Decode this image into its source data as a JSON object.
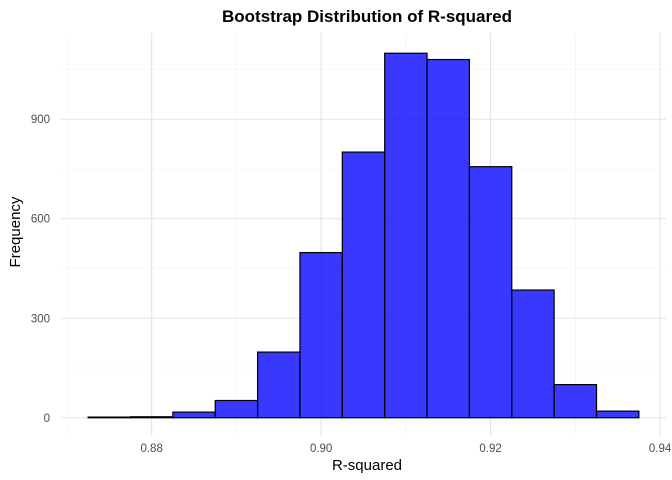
{
  "chart_data": {
    "type": "bar",
    "title": "Bootstrap Distribution of R-squared",
    "xlabel": "R-squared",
    "ylabel": "Frequency",
    "bin_width": 0.005,
    "bins": [
      {
        "x0": 0.8725,
        "x1": 0.8775,
        "count": 2
      },
      {
        "x0": 0.8775,
        "x1": 0.8825,
        "count": 3
      },
      {
        "x0": 0.8825,
        "x1": 0.8875,
        "count": 17
      },
      {
        "x0": 0.8875,
        "x1": 0.8925,
        "count": 52
      },
      {
        "x0": 0.8925,
        "x1": 0.8975,
        "count": 198
      },
      {
        "x0": 0.8975,
        "x1": 0.9025,
        "count": 498
      },
      {
        "x0": 0.9025,
        "x1": 0.9075,
        "count": 801
      },
      {
        "x0": 0.9075,
        "x1": 0.9125,
        "count": 1099
      },
      {
        "x0": 0.9125,
        "x1": 0.9175,
        "count": 1080
      },
      {
        "x0": 0.9175,
        "x1": 0.9225,
        "count": 757
      },
      {
        "x0": 0.9225,
        "x1": 0.9275,
        "count": 385
      },
      {
        "x0": 0.9275,
        "x1": 0.9325,
        "count": 100
      },
      {
        "x0": 0.9325,
        "x1": 0.9375,
        "count": 20
      }
    ],
    "xlim": [
      0.8693,
      0.9407
    ],
    "ylim": [
      -55,
      1160
    ],
    "x_ticks": [
      0.88,
      0.9,
      0.92,
      0.94
    ],
    "x_tick_labels": [
      "0.88",
      "0.90",
      "0.92",
      "0.94"
    ],
    "y_ticks": [
      0,
      300,
      600,
      900
    ],
    "y_tick_labels": [
      "0",
      "300",
      "600",
      "900"
    ],
    "x_minor": [
      0.87,
      0.89,
      0.91,
      0.93
    ],
    "y_minor": [
      150,
      450,
      750,
      1050
    ],
    "grid": true,
    "bar_fill": "#0000ff",
    "bar_opacity": 0.78,
    "bar_outline": "#000000"
  }
}
